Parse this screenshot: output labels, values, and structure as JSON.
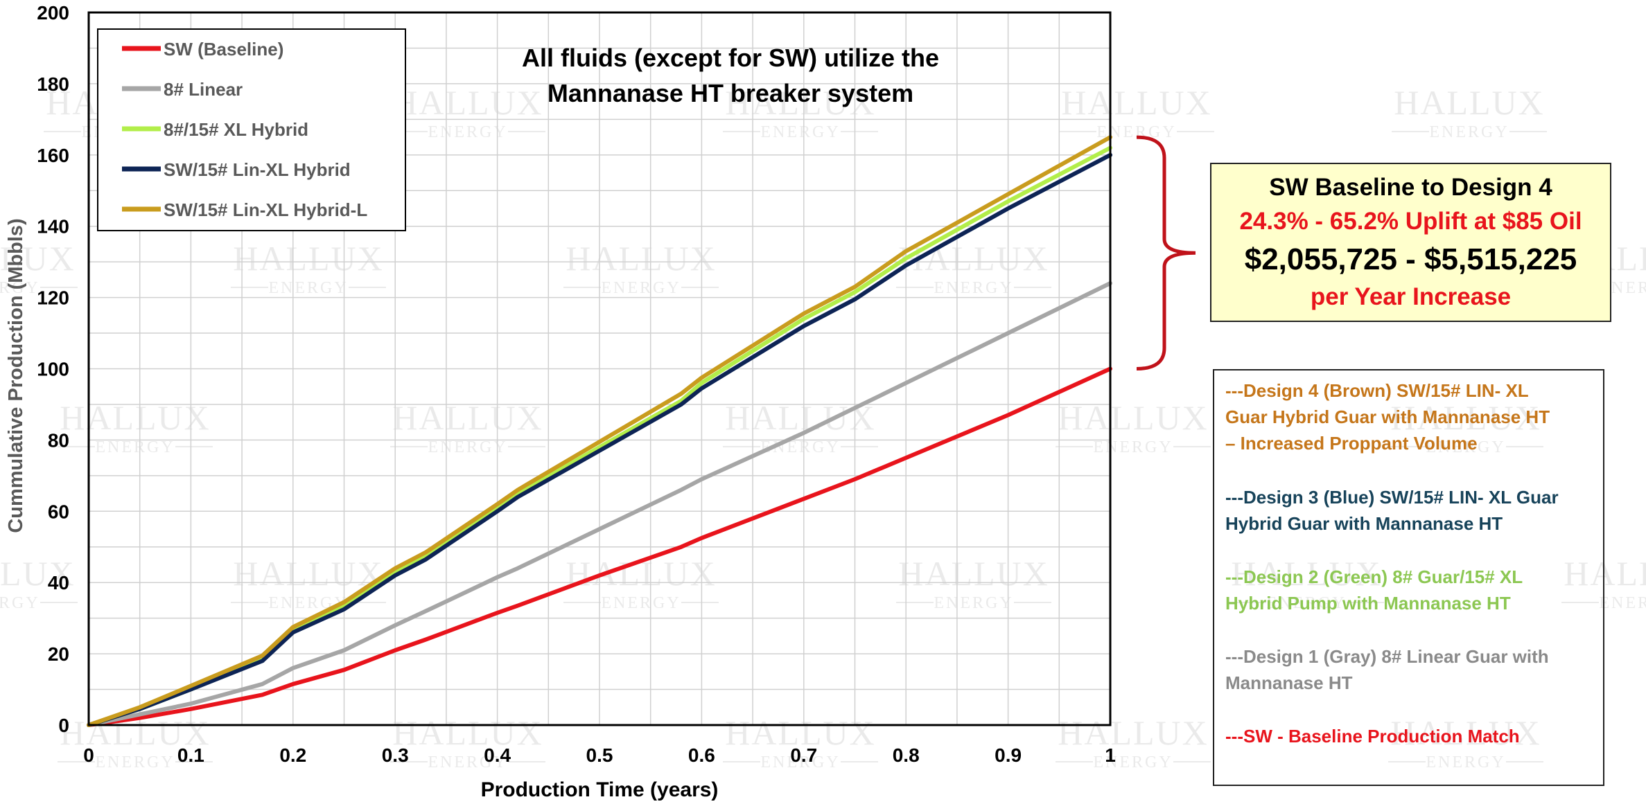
{
  "chart_data": {
    "type": "line",
    "title": "All fluids (except for SW) utilize the Mannanase HT breaker system",
    "title_lines": [
      "All fluids (except for SW) utilize the",
      "Mannanase HT breaker system"
    ],
    "xlabel": "Production Time (years)",
    "ylabel": "Cummulative Production (Mbbls)",
    "xlim": [
      0,
      1
    ],
    "ylim": [
      0,
      200
    ],
    "x_ticks": [
      "0",
      "0.1",
      "0.2",
      "0.3",
      "0.4",
      "0.5",
      "0.6",
      "0.7",
      "0.8",
      "0.9",
      "1"
    ],
    "y_ticks": [
      "0",
      "20",
      "40",
      "60",
      "80",
      "100",
      "120",
      "140",
      "160",
      "180",
      "200"
    ],
    "grid": true,
    "legend_position": "top-left",
    "series": [
      {
        "name": "SW (Baseline)",
        "color": "#e8141c",
        "x": [
          0,
          0.05,
          0.1,
          0.17,
          0.2,
          0.25,
          0.3,
          0.33,
          0.4,
          0.42,
          0.5,
          0.58,
          0.6,
          0.7,
          0.75,
          0.8,
          0.9,
          1.0
        ],
        "y": [
          0,
          2,
          4.5,
          8.5,
          11.5,
          15.5,
          21,
          24,
          31.5,
          33.5,
          42,
          50,
          52.5,
          63.5,
          69,
          75,
          87,
          100
        ]
      },
      {
        "name": "8# Linear",
        "color": "#a6a6a6",
        "x": [
          0,
          0.05,
          0.1,
          0.17,
          0.2,
          0.25,
          0.3,
          0.33,
          0.4,
          0.42,
          0.5,
          0.58,
          0.6,
          0.7,
          0.75,
          0.8,
          0.9,
          1.0
        ],
        "y": [
          0,
          3,
          6,
          11.5,
          16,
          21,
          28,
          32,
          41.5,
          44,
          55,
          66,
          69,
          82,
          89,
          96,
          110,
          124
        ]
      },
      {
        "name": "8#/15# XL Hybrid",
        "color": "#b2ee4a",
        "x": [
          0,
          0.05,
          0.1,
          0.17,
          0.2,
          0.25,
          0.3,
          0.33,
          0.4,
          0.42,
          0.5,
          0.58,
          0.6,
          0.7,
          0.75,
          0.8,
          0.9,
          1.0
        ],
        "y": [
          0,
          4.5,
          10,
          18.5,
          26.5,
          33.5,
          43,
          47.5,
          61,
          65,
          78,
          91,
          96,
          114,
          121.5,
          131,
          147,
          162
        ]
      },
      {
        "name": "SW/15# Lin-XL Hybrid",
        "color": "#0d2455",
        "x": [
          0,
          0.05,
          0.1,
          0.17,
          0.2,
          0.25,
          0.3,
          0.33,
          0.4,
          0.42,
          0.5,
          0.58,
          0.6,
          0.7,
          0.75,
          0.8,
          0.9,
          1.0
        ],
        "y": [
          0,
          4.5,
          10,
          18,
          26,
          32.5,
          42,
          46.5,
          60,
          64,
          77,
          90,
          94.5,
          112,
          119.5,
          129,
          145,
          160
        ]
      },
      {
        "name": "SW/15# Lin-XL Hybrid-L",
        "color": "#c99c1e",
        "x": [
          0,
          0.05,
          0.1,
          0.17,
          0.2,
          0.25,
          0.3,
          0.33,
          0.4,
          0.42,
          0.5,
          0.58,
          0.6,
          0.7,
          0.75,
          0.8,
          0.9,
          1.0
        ],
        "y": [
          0,
          5,
          11,
          19.5,
          27.5,
          34.5,
          44,
          48.5,
          62,
          66,
          79.5,
          93,
          97.5,
          115.5,
          123,
          133,
          149,
          165
        ]
      }
    ],
    "bracket_range": [
      100,
      165
    ]
  },
  "callout": {
    "line1": "SW Baseline to Design 4",
    "line2": "24.3% - 65.2% Uplift at $85 Oil",
    "line3": "$2,055,725 - $5,515,225",
    "line4": "per Year Increase",
    "color_black": "#000000",
    "color_red": "#e8141c"
  },
  "designs": [
    {
      "lines": [
        "---Design 4 (Brown) SW/15# LIN- XL",
        "Guar Hybrid Guar with Mannanase HT",
        "– Increased Proppant Volume"
      ],
      "color": "#c5761a"
    },
    {
      "lines": [
        "---Design 3 (Blue) SW/15# LIN- XL Guar",
        "Hybrid Guar with Mannanase HT"
      ],
      "color": "#17435a"
    },
    {
      "lines": [
        "---Design 2 (Green) 8# Guar/15# XL",
        "Hybrid Pump with Mannanase HT"
      ],
      "color": "#8cc752"
    },
    {
      "lines": [
        "---Design 1 (Gray) 8# Linear Guar with",
        "Mannanase HT"
      ],
      "color": "#8a8a8a"
    },
    {
      "lines": [
        "---SW - Baseline Production Match"
      ],
      "color": "#e8141c"
    }
  ],
  "watermark": {
    "line1": "HALLUX",
    "line2": "ENERGY"
  }
}
